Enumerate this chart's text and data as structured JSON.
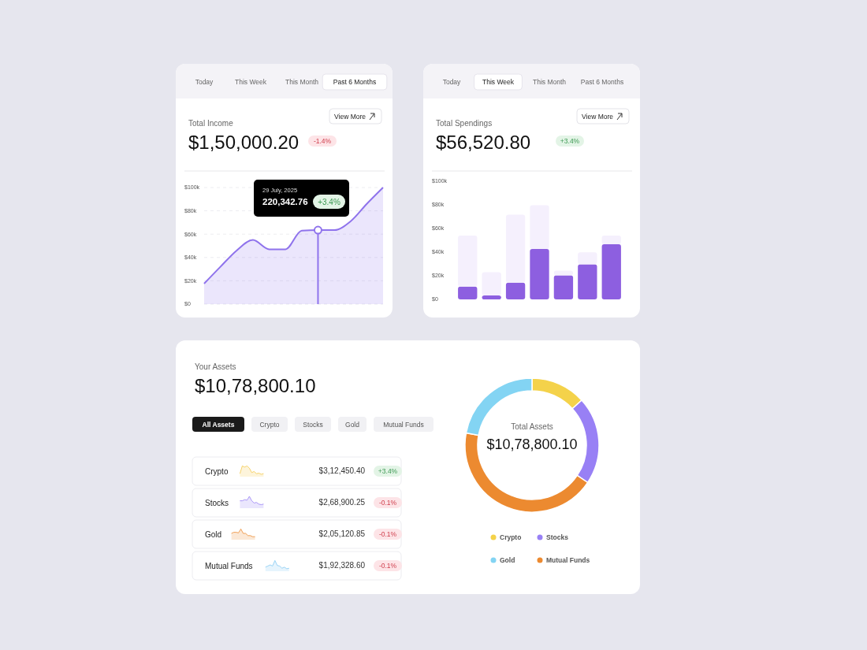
{
  "chart_data": [
    {
      "type": "area",
      "title": "Total Income",
      "subtitle": "$1,50,000.20",
      "annotations": [
        "Today",
        "This Week",
        "This Month",
        "Past 6 Months",
        "View More",
        "-1.4%",
        "29 July, 2025",
        "220,342.76",
        "+3.4%"
      ],
      "categories": [
        null,
        null,
        null,
        null,
        null,
        null,
        null,
        null,
        null,
        null,
        null,
        null
      ],
      "series": [
        {
          "color": "#8f73ec",
          "values": [
            17.6,
            32,
            46,
            55,
            47,
            47,
            63,
            63.5,
            63.5,
            71,
            86,
            100
          ]
        }
      ],
      "ylim": [
        0,
        100
      ],
      "yticks": [
        {
          "value": 0,
          "label": "$0"
        },
        {
          "value": 20,
          "label": "$20k"
        },
        {
          "value": 40,
          "label": "$40k"
        },
        {
          "value": 60,
          "label": "$60k"
        },
        {
          "value": 80,
          "label": "$80k"
        },
        {
          "value": 100,
          "label": "$100k"
        }
      ],
      "grid": "y",
      "marker": "none",
      "line_style": "solid"
    },
    {
      "type": "bar",
      "title": "Total Spendings",
      "subtitle": "$56,520.80",
      "annotations": [
        "Today",
        "This Week",
        "This Month",
        "Past 6 Months",
        "View More",
        "+3.4%"
      ],
      "categories": [
        null,
        null,
        null,
        null,
        null,
        null,
        null
      ],
      "stacked": true,
      "series": [
        {
          "color": "#8d5fe0",
          "values": [
            10.8,
            3.4,
            14.2,
            42.6,
            20.3,
            29.7,
            46.6
          ]
        },
        {
          "color": "#f5f0fd",
          "values": [
            43.2,
            19.6,
            57.4,
            37.1,
            4.0,
            10.2,
            7.4
          ]
        }
      ],
      "ylim": [
        0,
        100
      ],
      "yticks": [
        {
          "value": 0,
          "label": "$0"
        },
        {
          "value": 20,
          "label": "$20k"
        },
        {
          "value": 40,
          "label": "$40k"
        },
        {
          "value": 60,
          "label": "$60k"
        },
        {
          "value": 80,
          "label": "$80k"
        },
        {
          "value": 100,
          "label": "$100k"
        }
      ]
    },
    {
      "type": "other",
      "title": "Your Assets",
      "subtitle": "$10,78,800.10",
      "annotations": [
        "All Assets",
        "Crypto",
        "Stocks",
        "Gold",
        "Mutual Funds",
        "Crypto",
        "$3,12,450.40",
        "+3.4%",
        "Stocks",
        "$2,68,900.25",
        "-0.1%",
        "Gold",
        "$2,05,120.85",
        "-0.1%",
        "Mutual Funds",
        "$1,92,328.60",
        "-0.1%"
      ]
    },
    {
      "type": "donut",
      "title": "Total Assets",
      "subtitle": "$10,78,800.10",
      "categories": [
        "Crypto",
        "Stocks",
        "Mutual Funds",
        "Gold"
      ],
      "values": [
        13.3,
        21.1,
        43.5,
        22.1
      ],
      "colors": [
        "#f4d24a",
        "#9880f5",
        "#ec8a30",
        "#83d4f3"
      ],
      "legend": "bottom"
    }
  ]
}
